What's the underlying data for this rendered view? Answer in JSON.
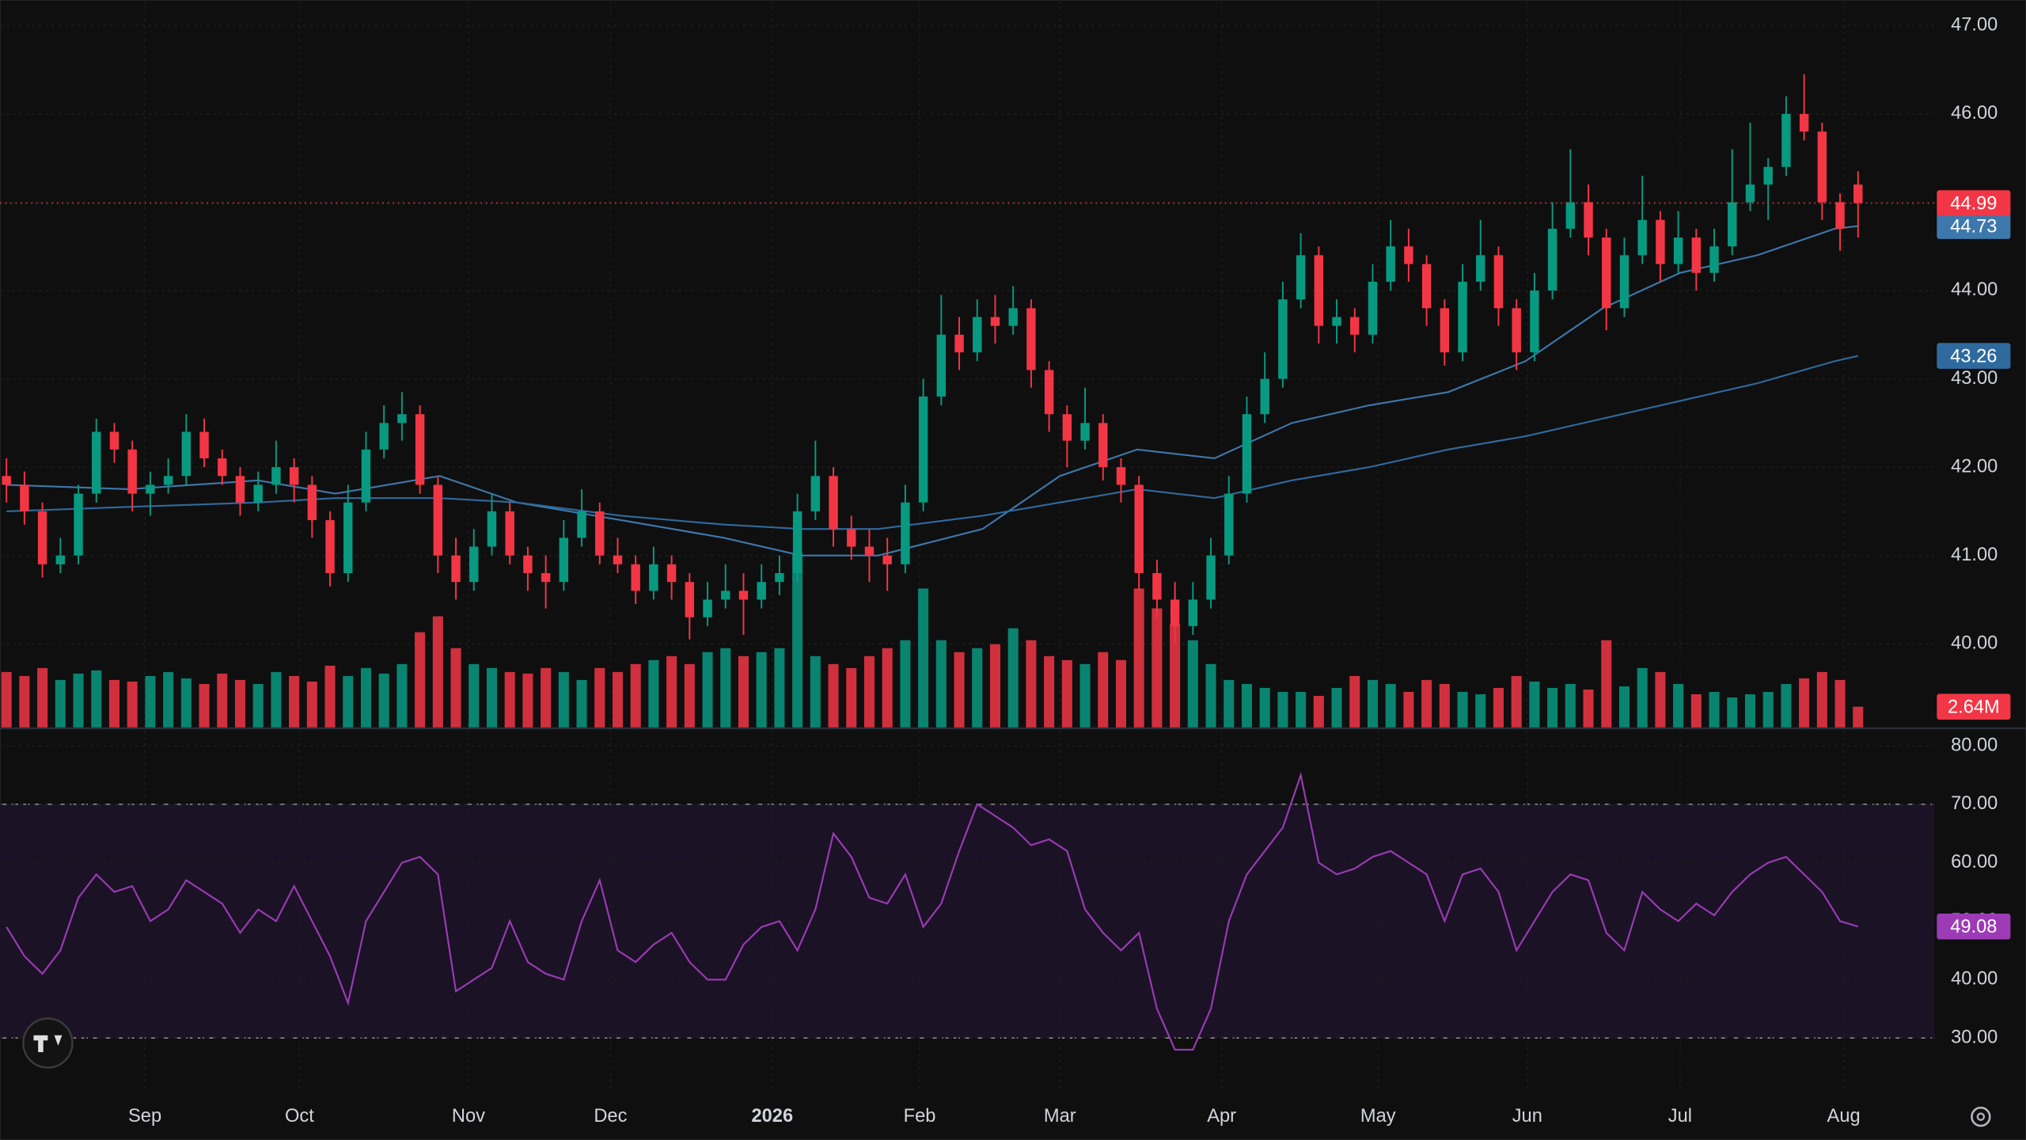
{
  "chart_data": {
    "type": "candlestick",
    "grid": true,
    "last_price_line": true,
    "up_color": "#089981",
    "down_color": "#f23645",
    "xlim": [
      -0.36,
      107.24
    ],
    "ylim": [
      39.05,
      47.29
    ],
    "xticks": [
      {
        "value": 7.7,
        "label": "Sep"
      },
      {
        "value": 16.3,
        "label": "Oct"
      },
      {
        "value": 25.7,
        "label": "Nov"
      },
      {
        "value": 33.6,
        "label": "Dec"
      },
      {
        "value": 42.6,
        "label": "2026"
      },
      {
        "value": 50.8,
        "label": "Feb"
      },
      {
        "value": 58.6,
        "label": "Mar"
      },
      {
        "value": 67.6,
        "label": "Apr"
      },
      {
        "value": 76.3,
        "label": "May"
      },
      {
        "value": 84.6,
        "label": "Jun"
      },
      {
        "value": 93.1,
        "label": "Jul"
      },
      {
        "value": 102.2,
        "label": "Aug"
      }
    ],
    "yticks": [
      {
        "value": 40,
        "label": "40.00"
      },
      {
        "value": 41,
        "label": "41.00"
      },
      {
        "value": 42,
        "label": "42.00"
      },
      {
        "value": 43,
        "label": "43.00"
      },
      {
        "value": 44,
        "label": "44.00"
      },
      {
        "value": 45,
        "label": "45.00"
      },
      {
        "value": 46,
        "label": "46.00"
      },
      {
        "value": 47,
        "label": "47.00"
      }
    ],
    "ohlc": [
      [
        41.9,
        42.1,
        41.6,
        41.8
      ],
      [
        41.8,
        41.95,
        41.35,
        41.5
      ],
      [
        41.5,
        41.6,
        40.75,
        40.9
      ],
      [
        40.9,
        41.2,
        40.8,
        41.0
      ],
      [
        41.0,
        41.8,
        40.9,
        41.7
      ],
      [
        41.7,
        42.55,
        41.6,
        42.4
      ],
      [
        42.4,
        42.5,
        42.05,
        42.2
      ],
      [
        42.2,
        42.3,
        41.5,
        41.7
      ],
      [
        41.7,
        41.95,
        41.45,
        41.8
      ],
      [
        41.8,
        42.1,
        41.7,
        41.9
      ],
      [
        41.9,
        42.6,
        41.8,
        42.4
      ],
      [
        42.4,
        42.55,
        42.0,
        42.1
      ],
      [
        42.1,
        42.2,
        41.8,
        41.9
      ],
      [
        41.9,
        42.0,
        41.45,
        41.6
      ],
      [
        41.6,
        41.95,
        41.5,
        41.8
      ],
      [
        41.8,
        42.3,
        41.7,
        42.0
      ],
      [
        42.0,
        42.1,
        41.6,
        41.8
      ],
      [
        41.8,
        41.9,
        41.2,
        41.4
      ],
      [
        41.4,
        41.5,
        40.65,
        40.8
      ],
      [
        40.8,
        41.8,
        40.7,
        41.6
      ],
      [
        41.6,
        42.4,
        41.5,
        42.2
      ],
      [
        42.2,
        42.7,
        42.1,
        42.5
      ],
      [
        42.5,
        42.85,
        42.3,
        42.6
      ],
      [
        42.6,
        42.7,
        41.7,
        41.8
      ],
      [
        41.8,
        41.9,
        40.8,
        41.0
      ],
      [
        41.0,
        41.2,
        40.5,
        40.7
      ],
      [
        40.7,
        41.3,
        40.6,
        41.1
      ],
      [
        41.1,
        41.7,
        41.0,
        41.5
      ],
      [
        41.5,
        41.6,
        40.9,
        41.0
      ],
      [
        41.0,
        41.1,
        40.6,
        40.8
      ],
      [
        40.8,
        41.0,
        40.4,
        40.7
      ],
      [
        40.7,
        41.4,
        40.6,
        41.2
      ],
      [
        41.2,
        41.75,
        41.1,
        41.5
      ],
      [
        41.5,
        41.6,
        40.9,
        41.0
      ],
      [
        41.0,
        41.2,
        40.8,
        40.9
      ],
      [
        40.9,
        41.0,
        40.45,
        40.6
      ],
      [
        40.6,
        41.1,
        40.5,
        40.9
      ],
      [
        40.9,
        41.0,
        40.5,
        40.7
      ],
      [
        40.7,
        40.8,
        40.05,
        40.3
      ],
      [
        40.3,
        40.7,
        40.2,
        40.5
      ],
      [
        40.5,
        40.9,
        40.4,
        40.6
      ],
      [
        40.6,
        40.8,
        40.1,
        40.5
      ],
      [
        40.5,
        40.9,
        40.4,
        40.7
      ],
      [
        40.7,
        41.0,
        40.55,
        40.8
      ],
      [
        40.8,
        41.7,
        40.7,
        41.5
      ],
      [
        41.5,
        42.3,
        41.4,
        41.9
      ],
      [
        41.9,
        42.0,
        41.1,
        41.3
      ],
      [
        41.3,
        41.45,
        40.95,
        41.1
      ],
      [
        41.1,
        41.3,
        40.7,
        41.0
      ],
      [
        41.0,
        41.2,
        40.6,
        40.9
      ],
      [
        40.9,
        41.8,
        40.8,
        41.6
      ],
      [
        41.6,
        43.0,
        41.5,
        42.8
      ],
      [
        42.8,
        43.95,
        42.7,
        43.5
      ],
      [
        43.5,
        43.7,
        43.1,
        43.3
      ],
      [
        43.3,
        43.9,
        43.2,
        43.7
      ],
      [
        43.7,
        43.95,
        43.4,
        43.6
      ],
      [
        43.6,
        44.05,
        43.5,
        43.8
      ],
      [
        43.8,
        43.9,
        42.9,
        43.1
      ],
      [
        43.1,
        43.2,
        42.4,
        42.6
      ],
      [
        42.6,
        42.7,
        42.0,
        42.3
      ],
      [
        42.3,
        42.9,
        42.2,
        42.5
      ],
      [
        42.5,
        42.6,
        41.85,
        42.0
      ],
      [
        42.0,
        42.1,
        41.6,
        41.8
      ],
      [
        41.8,
        41.9,
        40.6,
        40.8
      ],
      [
        40.8,
        40.95,
        40.3,
        40.5
      ],
      [
        40.5,
        40.7,
        40.0,
        40.2
      ],
      [
        40.2,
        40.7,
        40.1,
        40.5
      ],
      [
        40.5,
        41.2,
        40.4,
        41.0
      ],
      [
        41.0,
        41.9,
        40.9,
        41.7
      ],
      [
        41.7,
        42.8,
        41.6,
        42.6
      ],
      [
        42.6,
        43.3,
        42.5,
        43.0
      ],
      [
        43.0,
        44.1,
        42.9,
        43.9
      ],
      [
        43.9,
        44.65,
        43.8,
        44.4
      ],
      [
        44.4,
        44.5,
        43.4,
        43.6
      ],
      [
        43.6,
        43.9,
        43.4,
        43.7
      ],
      [
        43.7,
        43.8,
        43.3,
        43.5
      ],
      [
        43.5,
        44.3,
        43.4,
        44.1
      ],
      [
        44.1,
        44.8,
        44.0,
        44.5
      ],
      [
        44.5,
        44.7,
        44.1,
        44.3
      ],
      [
        44.3,
        44.4,
        43.6,
        43.8
      ],
      [
        43.8,
        43.9,
        43.15,
        43.3
      ],
      [
        43.3,
        44.3,
        43.2,
        44.1
      ],
      [
        44.1,
        44.8,
        44.0,
        44.4
      ],
      [
        44.4,
        44.5,
        43.6,
        43.8
      ],
      [
        43.8,
        43.9,
        43.1,
        43.3
      ],
      [
        43.3,
        44.2,
        43.2,
        44.0
      ],
      [
        44.0,
        45.0,
        43.9,
        44.7
      ],
      [
        44.7,
        45.6,
        44.6,
        45.0
      ],
      [
        45.0,
        45.2,
        44.4,
        44.6
      ],
      [
        44.6,
        44.7,
        43.55,
        43.8
      ],
      [
        43.8,
        44.6,
        43.7,
        44.4
      ],
      [
        44.4,
        45.3,
        44.3,
        44.8
      ],
      [
        44.8,
        44.9,
        44.1,
        44.3
      ],
      [
        44.3,
        44.9,
        44.2,
        44.6
      ],
      [
        44.6,
        44.7,
        44.0,
        44.2
      ],
      [
        44.2,
        44.7,
        44.1,
        44.5
      ],
      [
        44.5,
        45.6,
        44.4,
        45.0
      ],
      [
        45.0,
        45.9,
        44.9,
        45.2
      ],
      [
        45.2,
        45.5,
        44.8,
        45.4
      ],
      [
        45.4,
        46.2,
        45.3,
        46.0
      ],
      [
        46.0,
        46.45,
        45.7,
        45.8
      ],
      [
        45.8,
        45.9,
        44.8,
        45.0
      ],
      [
        45.0,
        45.1,
        44.45,
        44.7
      ],
      [
        45.2,
        45.35,
        44.6,
        44.99
      ]
    ],
    "moving_averages": [
      {
        "color": "#3d78ad",
        "x": [
          0,
          6.8,
          14,
          18.3,
          24.1,
          28.4,
          34.2,
          39.9,
          44.2,
          48.5,
          54.3,
          58.6,
          62.9,
          67.2,
          71.5,
          75.8,
          80.2,
          84.5,
          88.8,
          93.1,
          97.4,
          101.7,
          103
        ],
        "values": [
          41.8,
          41.75,
          41.85,
          41.7,
          41.9,
          41.6,
          41.4,
          41.2,
          41.0,
          41.0,
          41.3,
          41.9,
          42.2,
          42.1,
          42.5,
          42.7,
          42.85,
          43.2,
          43.8,
          44.2,
          44.4,
          44.7,
          44.73
        ]
      },
      {
        "color": "#2f6a9e",
        "x": [
          0,
          6.8,
          14,
          18.3,
          24.1,
          28.4,
          34.2,
          39.9,
          44.2,
          48.5,
          54.3,
          58.6,
          62.9,
          67.2,
          71.5,
          75.8,
          80.2,
          84.5,
          88.8,
          93.1,
          97.4,
          101.7,
          103
        ],
        "values": [
          41.5,
          41.55,
          41.6,
          41.65,
          41.65,
          41.6,
          41.45,
          41.35,
          41.3,
          41.3,
          41.45,
          41.6,
          41.75,
          41.65,
          41.85,
          42.0,
          42.2,
          42.35,
          42.55,
          42.75,
          42.95,
          43.2,
          43.26
        ]
      }
    ],
    "volume": {
      "label": "2.64M",
      "ylim": [
        0,
        91.5
      ],
      "values": [
        7,
        6.5,
        7.5,
        6,
        6.8,
        7.2,
        6,
        5.8,
        6.5,
        7,
        6.2,
        5.5,
        6.8,
        6,
        5.5,
        7,
        6.5,
        5.8,
        7.8,
        6.5,
        7.5,
        6.8,
        8,
        12,
        14,
        10,
        8,
        7.5,
        7,
        6.8,
        7.5,
        7,
        6,
        7.5,
        7,
        8,
        8.5,
        9,
        8,
        9.5,
        10,
        9,
        9.5,
        10,
        22,
        9,
        8,
        7.5,
        9,
        10,
        11,
        17.5,
        11,
        9.5,
        10,
        10.5,
        12.5,
        11,
        9,
        8.5,
        8,
        9.5,
        8.5,
        17.5,
        15,
        13,
        11,
        8,
        6,
        5.5,
        5,
        4.5,
        4.5,
        4,
        5,
        6.5,
        6,
        5.5,
        4.5,
        6,
        5.5,
        4.5,
        4.2,
        5,
        6.5,
        5.8,
        5,
        5.5,
        4.8,
        11,
        5.2,
        7.5,
        7,
        5.5,
        4.2,
        4.5,
        3.8,
        4.2,
        4.5,
        5.5,
        6.2,
        7,
        6,
        2.64
      ]
    },
    "rsi": {
      "color": "#9c3bb5",
      "band": [
        30,
        70
      ],
      "ylim": [
        21.4,
        83.1
      ],
      "yticks": [
        {
          "value": 30,
          "label": "30.00"
        },
        {
          "value": 40,
          "label": "40.00"
        },
        {
          "value": 50,
          "label": "50.00"
        },
        {
          "value": 60,
          "label": "60.00"
        },
        {
          "value": 70,
          "label": "70.00"
        },
        {
          "value": 80,
          "label": "80.00"
        }
      ],
      "values": [
        49,
        44,
        41,
        45,
        54,
        58,
        55,
        56,
        50,
        52,
        57,
        55,
        53,
        48,
        52,
        50,
        56,
        50,
        44,
        36,
        50,
        55,
        60,
        61,
        58,
        38,
        40,
        42,
        50,
        43,
        41,
        40,
        50,
        57,
        45,
        43,
        46,
        48,
        43,
        40,
        40,
        46,
        49,
        50,
        45,
        52,
        65,
        61,
        54,
        53,
        58,
        49,
        53,
        62,
        70,
        68,
        66,
        63,
        64,
        62,
        52,
        48,
        45,
        48,
        35,
        28,
        28,
        35,
        50,
        58,
        62,
        66,
        75,
        60,
        58,
        59,
        61,
        62,
        60,
        58,
        50,
        58,
        59,
        55,
        45,
        50,
        55,
        58,
        57,
        48,
        45,
        55,
        52,
        50,
        53,
        51,
        55,
        58,
        60,
        61,
        58,
        55,
        50,
        49.08
      ]
    }
  }
}
